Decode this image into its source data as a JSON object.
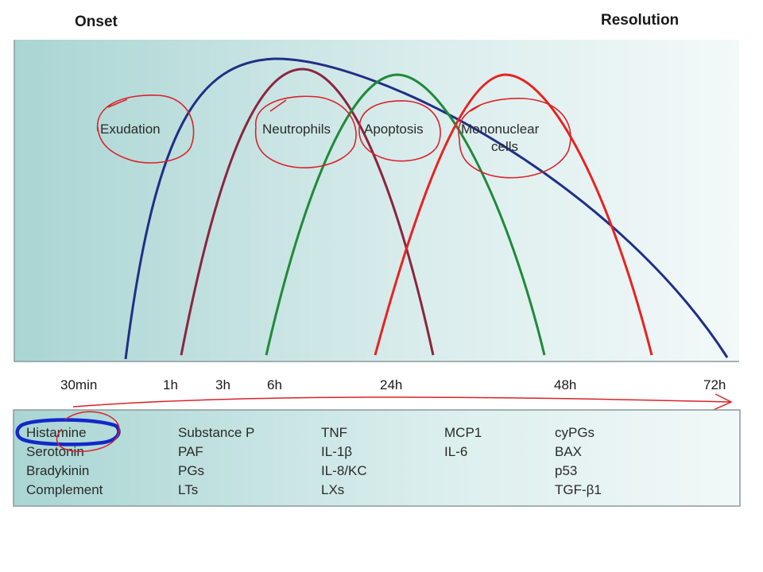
{
  "header": {
    "onset": "Onset",
    "resolution": "Resolution"
  },
  "phases": [
    "Exudation",
    "Neutrophils",
    "Apoptosis",
    "Mononuclear",
    "cells"
  ],
  "time_ticks": [
    "30min",
    "1h",
    "3h",
    "6h",
    "24h",
    "48h",
    "72h"
  ],
  "mediators": {
    "col1": [
      "Histamine",
      "Serotonin",
      "Bradykinin",
      "Complement"
    ],
    "col2": [
      "Substance P",
      "PAF",
      "PGs",
      "LTs"
    ],
    "col3": [
      "TNF",
      "IL-1β",
      "IL-8/KC",
      "LXs"
    ],
    "col4": [
      "MCP1",
      "IL-6"
    ],
    "col5": [
      "cyPGs",
      "BAX",
      "p53",
      "TGF-β1"
    ]
  },
  "colors": {
    "exudation_curve": "#1f2f86",
    "neutrophil_curve": "#8a2540",
    "apoptosis_curve": "#1f8a3a",
    "mononuclear_curve": "#e8231f",
    "annotation_red": "#d9232a",
    "annotation_blue": "#1228c8",
    "panel_gradient_start": "#a8d4d2",
    "panel_gradient_end": "#f4f9f9"
  }
}
